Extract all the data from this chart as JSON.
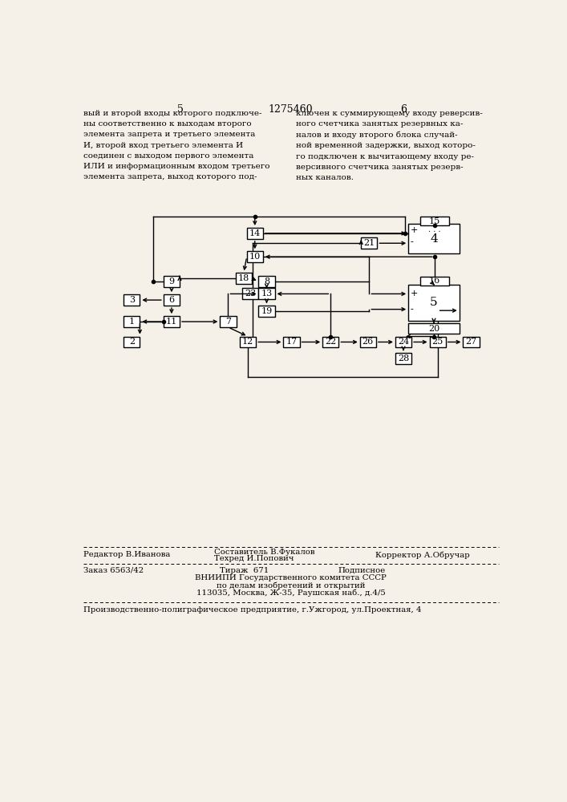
{
  "title": "1275460",
  "page_left": "5",
  "page_right": "6",
  "bg_color": "#f5f0e8",
  "box_color": "#000000",
  "line_color": "#000000",
  "text_left": "вый и второй входы которого подключе-\nны соответственно к выходам второго\nэлемента запрета и третьего элемента\nИ, второй вход третьего элемента И\nсоединен с выходом первого элемента\nИЛИ и информационным входом третьего\nэлемента запрета, выход которого под-",
  "text_right": "ключен к суммирующему входу реверсив-\nного счетчика занятых резервных ка-\nналов и входу второго блока случай-\nной временной задержки, выход которо-\nго подключен к вычитающему входу ре-\nверсивного счетчика занятых резерв-\nных каналов."
}
